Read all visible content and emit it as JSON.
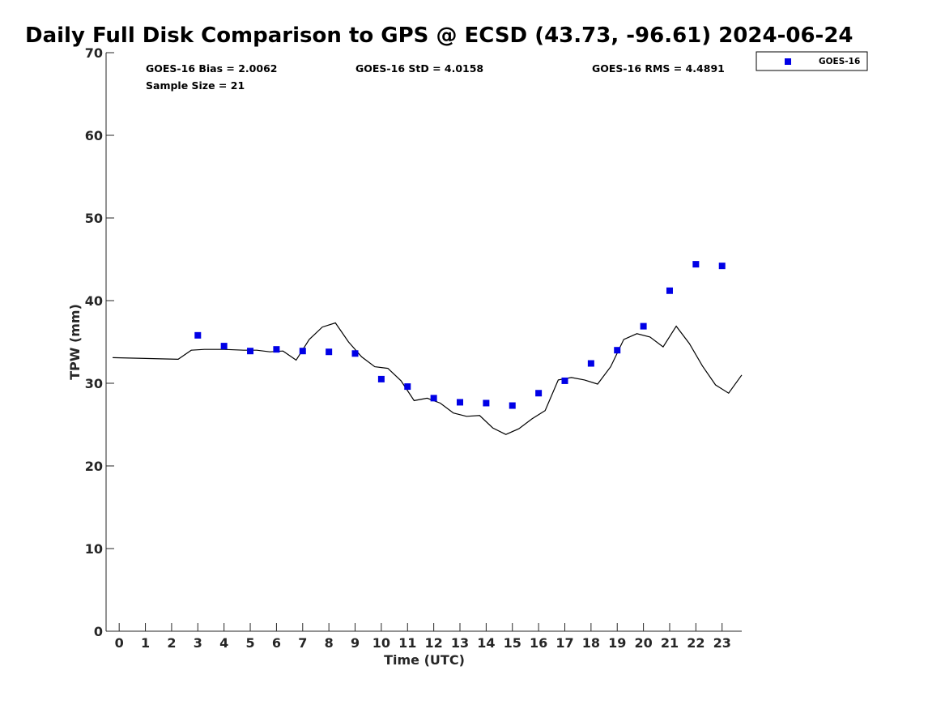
{
  "chart_data": {
    "type": "scatter",
    "title": "Daily Full Disk Comparison to GPS @ ECSD (43.73, -96.61) 2024-06-24",
    "xlabel": "Time (UTC)",
    "ylabel": "TPW (mm)",
    "xlim": [
      -0.5,
      23.75
    ],
    "ylim": [
      0,
      70
    ],
    "x_ticks": [
      0,
      1,
      2,
      3,
      4,
      5,
      6,
      7,
      8,
      9,
      10,
      11,
      12,
      13,
      14,
      15,
      16,
      17,
      18,
      19,
      20,
      21,
      22,
      23
    ],
    "y_ticks": [
      0,
      10,
      20,
      30,
      40,
      50,
      60,
      70
    ],
    "grid": false,
    "legend_position": "top-right",
    "stats": {
      "bias": "GOES-16 Bias = 2.0062",
      "std": "GOES-16 StD = 4.0158",
      "rms": "GOES-16 RMS = 4.4891",
      "sample_size": "Sample Size = 21"
    },
    "series": [
      {
        "name": "GOES-16",
        "marker": "square",
        "color": "#0000e6",
        "x": [
          3,
          4,
          5,
          6,
          7,
          8,
          9,
          10,
          11,
          12,
          13,
          14,
          15,
          16,
          17,
          18,
          19,
          20,
          21,
          22,
          23
        ],
        "y": [
          35.8,
          34.5,
          33.9,
          34.1,
          33.9,
          33.8,
          33.6,
          30.5,
          29.6,
          28.2,
          27.7,
          27.6,
          27.3,
          28.8,
          30.3,
          32.4,
          34.0,
          36.9,
          41.2,
          44.4,
          44.2
        ]
      },
      {
        "marker": "none",
        "color": "#000000",
        "x": [
          -0.25,
          2.25,
          2.75,
          3.25,
          4.0,
          4.75,
          5.25,
          5.75,
          6.25,
          6.75,
          7.25,
          7.75,
          8.25,
          8.75,
          9.25,
          9.75,
          10.25,
          10.75,
          11.25,
          11.75,
          12.25,
          12.75,
          13.25,
          13.75,
          14.25,
          14.75,
          15.25,
          15.75,
          16.25,
          16.75,
          17.25,
          17.75,
          18.25,
          18.75,
          19.25,
          19.75,
          20.25,
          20.75,
          21.25,
          21.75,
          22.25,
          22.75,
          23.25,
          23.75
        ],
        "y": [
          33.1,
          32.9,
          34.0,
          34.1,
          34.1,
          34.0,
          34.0,
          33.8,
          33.9,
          32.8,
          35.3,
          36.8,
          37.3,
          35.0,
          33.2,
          32.0,
          31.8,
          30.3,
          27.9,
          28.2,
          27.6,
          26.4,
          26.0,
          26.1,
          24.6,
          23.8,
          24.5,
          25.7,
          26.7,
          30.4,
          30.7,
          30.4,
          29.9,
          32.0,
          35.3,
          36.0,
          35.6,
          34.4,
          36.9,
          34.8,
          32.1,
          29.8,
          28.8,
          31.0
        ]
      }
    ]
  },
  "legend": {
    "label": "GOES-16"
  }
}
